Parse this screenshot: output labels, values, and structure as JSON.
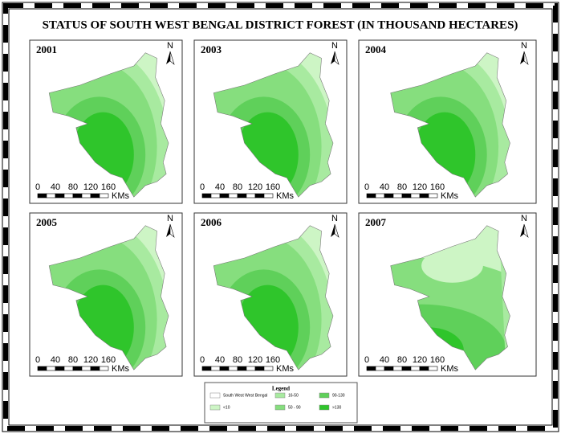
{
  "title": "STATUS OF SOUTH WEST BENGAL DISTRICT FOREST (IN THOUSAND HECTARES)",
  "panels": [
    {
      "year": "2001"
    },
    {
      "year": "2003"
    },
    {
      "year": "2004"
    },
    {
      "year": "2005"
    },
    {
      "year": "2006"
    },
    {
      "year": "2007"
    }
  ],
  "scale": {
    "ticks": [
      0,
      40,
      80,
      120,
      160
    ],
    "unit": "KMs"
  },
  "north": "N",
  "legend": {
    "title": "Legend",
    "items": [
      {
        "label": "South West West Bengal"
      },
      {
        "label": "<10"
      },
      {
        "label": "16-50"
      },
      {
        "label": "50 - 90"
      },
      {
        "label": "90-130"
      },
      {
        "label": ">130"
      }
    ]
  }
}
